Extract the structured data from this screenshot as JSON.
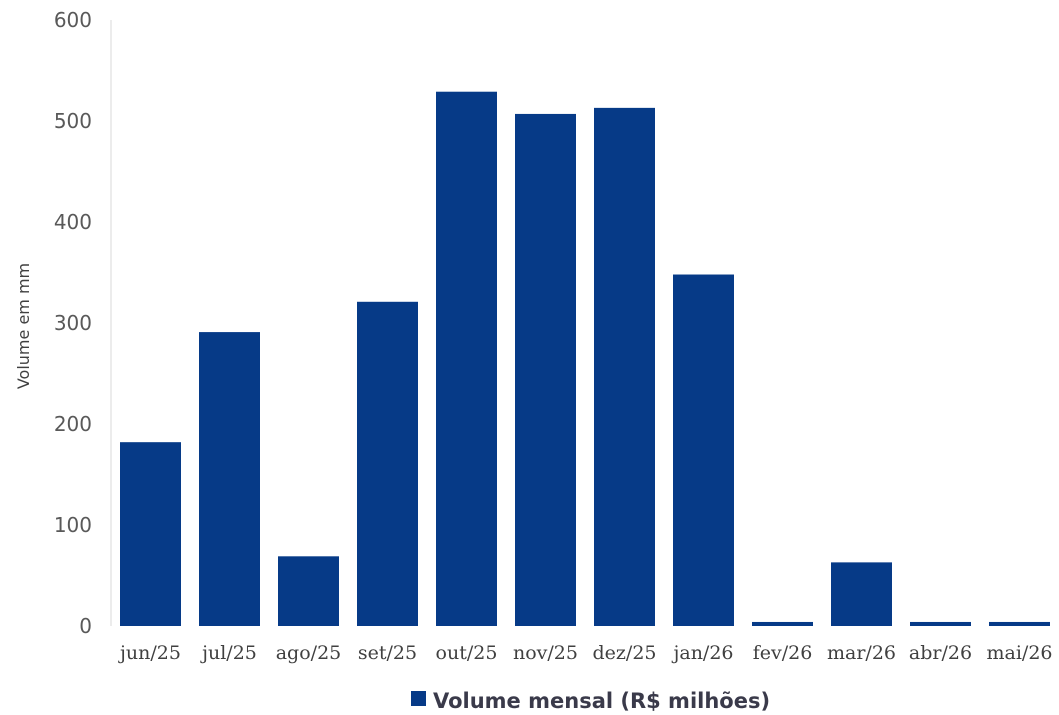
{
  "chart_data": {
    "type": "bar",
    "title": "",
    "xlabel": "",
    "ylabel": "Volume em mm",
    "categories": [
      "jun/25",
      "jul/25",
      "ago/25",
      "set/25",
      "out/25",
      "nov/25",
      "dez/25",
      "jan/26",
      "fev/26",
      "mar/26",
      "abr/26",
      "mai/26"
    ],
    "series": [
      {
        "name": "Volume mensal (R$ milhões)",
        "values": [
          182,
          291,
          69,
          321,
          529,
          507,
          513,
          348,
          4,
          63,
          4,
          4
        ],
        "color": "#063a87"
      }
    ],
    "ylim": [
      0,
      600
    ],
    "yticks": [
      "0",
      "100",
      "200",
      "300",
      "400",
      "500",
      "600"
    ],
    "grid": false,
    "legend": "bottom-center"
  }
}
